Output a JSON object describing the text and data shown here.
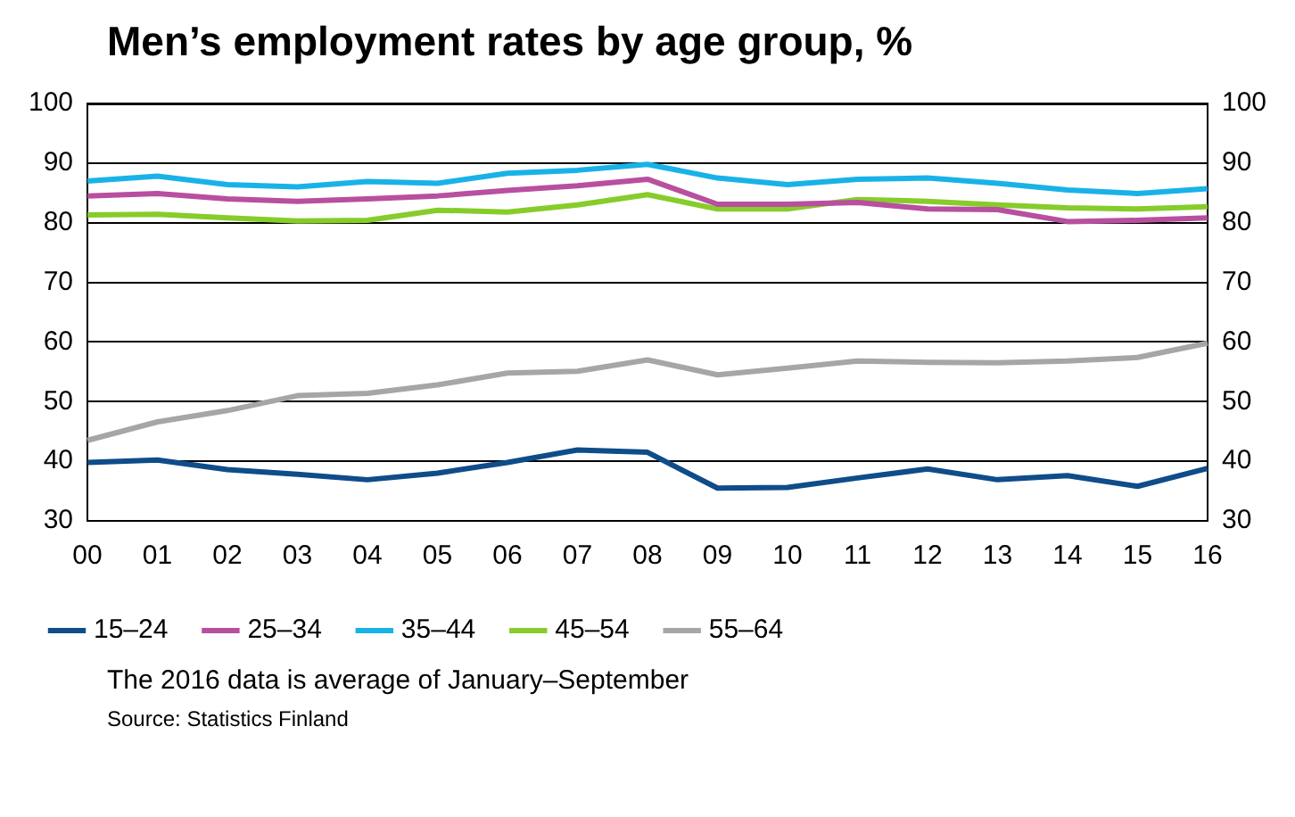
{
  "chart_data": {
    "type": "line",
    "title": "Men’s employment rates by age group, %",
    "categories": [
      "00",
      "01",
      "02",
      "03",
      "04",
      "05",
      "06",
      "07",
      "08",
      "09",
      "10",
      "11",
      "12",
      "13",
      "14",
      "15",
      "16"
    ],
    "series": [
      {
        "name": "15–24",
        "color": "#0f4c8a",
        "values": [
          39.8,
          40.2,
          38.6,
          37.8,
          36.9,
          38.0,
          39.8,
          41.9,
          41.5,
          35.5,
          35.6,
          37.2,
          38.7,
          36.9,
          37.6,
          35.8,
          38.8
        ]
      },
      {
        "name": "25–34",
        "color": "#b84f9f",
        "values": [
          84.5,
          84.9,
          84.0,
          83.6,
          84.0,
          84.5,
          85.4,
          86.2,
          87.3,
          83.1,
          83.1,
          83.4,
          82.3,
          82.2,
          80.2,
          80.4,
          80.8
        ]
      },
      {
        "name": "35–44",
        "color": "#19b2e8",
        "values": [
          87.0,
          87.8,
          86.4,
          86.0,
          86.9,
          86.6,
          88.3,
          88.8,
          89.8,
          87.5,
          86.4,
          87.3,
          87.5,
          86.6,
          85.5,
          84.9,
          85.7
        ]
      },
      {
        "name": "45–54",
        "color": "#86cc2a",
        "values": [
          81.3,
          81.4,
          80.8,
          80.3,
          80.4,
          82.1,
          81.8,
          83.0,
          84.7,
          82.3,
          82.3,
          83.9,
          83.6,
          83.0,
          82.5,
          82.3,
          82.7
        ]
      },
      {
        "name": "55–64",
        "color": "#a6a6a6",
        "values": [
          43.5,
          46.6,
          48.5,
          51.0,
          51.4,
          52.8,
          54.8,
          55.1,
          57.0,
          54.5,
          55.6,
          56.8,
          56.6,
          56.5,
          56.8,
          57.4,
          59.8
        ]
      }
    ],
    "ylim": [
      30,
      100
    ],
    "yticks": [
      30,
      40,
      50,
      60,
      70,
      80,
      90,
      100
    ],
    "y2lim": [
      30,
      100
    ],
    "y2ticks": [
      30,
      40,
      50,
      60,
      70,
      80,
      90,
      100
    ],
    "grid": "y",
    "legend": "bottom",
    "marker": "none",
    "line_style": "solid",
    "annotations": [
      "The 2016 data is average of January–September",
      "Source: Statistics Finland"
    ]
  }
}
